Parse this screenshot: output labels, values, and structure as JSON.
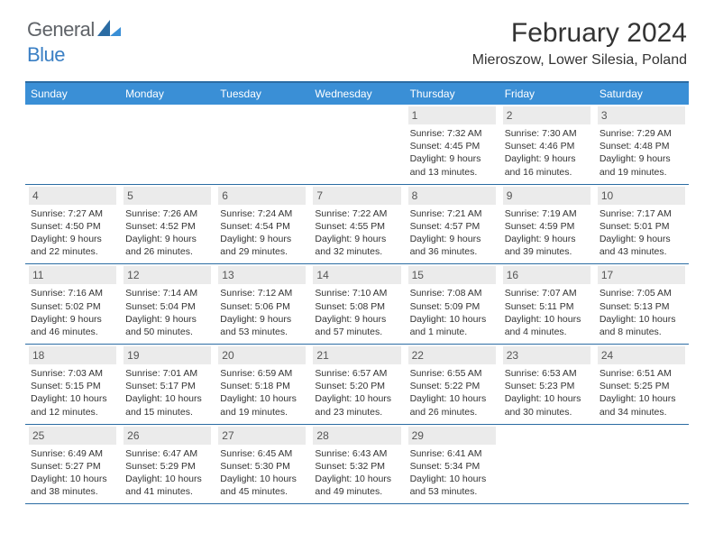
{
  "header": {
    "logo_general": "General",
    "logo_blue": "Blue",
    "month_title": "February 2024",
    "location": "Mieroszow, Lower Silesia, Poland"
  },
  "calendar": {
    "weekdays": [
      "Sunday",
      "Monday",
      "Tuesday",
      "Wednesday",
      "Thursday",
      "Friday",
      "Saturday"
    ],
    "header_bg": "#3a8fd6",
    "border_color": "#2b6ca3",
    "daynum_bg": "#ebebeb",
    "weeks": [
      [
        null,
        null,
        null,
        null,
        {
          "n": "1",
          "sr": "Sunrise: 7:32 AM",
          "ss": "Sunset: 4:45 PM",
          "dl": "Daylight: 9 hours and 13 minutes."
        },
        {
          "n": "2",
          "sr": "Sunrise: 7:30 AM",
          "ss": "Sunset: 4:46 PM",
          "dl": "Daylight: 9 hours and 16 minutes."
        },
        {
          "n": "3",
          "sr": "Sunrise: 7:29 AM",
          "ss": "Sunset: 4:48 PM",
          "dl": "Daylight: 9 hours and 19 minutes."
        }
      ],
      [
        {
          "n": "4",
          "sr": "Sunrise: 7:27 AM",
          "ss": "Sunset: 4:50 PM",
          "dl": "Daylight: 9 hours and 22 minutes."
        },
        {
          "n": "5",
          "sr": "Sunrise: 7:26 AM",
          "ss": "Sunset: 4:52 PM",
          "dl": "Daylight: 9 hours and 26 minutes."
        },
        {
          "n": "6",
          "sr": "Sunrise: 7:24 AM",
          "ss": "Sunset: 4:54 PM",
          "dl": "Daylight: 9 hours and 29 minutes."
        },
        {
          "n": "7",
          "sr": "Sunrise: 7:22 AM",
          "ss": "Sunset: 4:55 PM",
          "dl": "Daylight: 9 hours and 32 minutes."
        },
        {
          "n": "8",
          "sr": "Sunrise: 7:21 AM",
          "ss": "Sunset: 4:57 PM",
          "dl": "Daylight: 9 hours and 36 minutes."
        },
        {
          "n": "9",
          "sr": "Sunrise: 7:19 AM",
          "ss": "Sunset: 4:59 PM",
          "dl": "Daylight: 9 hours and 39 minutes."
        },
        {
          "n": "10",
          "sr": "Sunrise: 7:17 AM",
          "ss": "Sunset: 5:01 PM",
          "dl": "Daylight: 9 hours and 43 minutes."
        }
      ],
      [
        {
          "n": "11",
          "sr": "Sunrise: 7:16 AM",
          "ss": "Sunset: 5:02 PM",
          "dl": "Daylight: 9 hours and 46 minutes."
        },
        {
          "n": "12",
          "sr": "Sunrise: 7:14 AM",
          "ss": "Sunset: 5:04 PM",
          "dl": "Daylight: 9 hours and 50 minutes."
        },
        {
          "n": "13",
          "sr": "Sunrise: 7:12 AM",
          "ss": "Sunset: 5:06 PM",
          "dl": "Daylight: 9 hours and 53 minutes."
        },
        {
          "n": "14",
          "sr": "Sunrise: 7:10 AM",
          "ss": "Sunset: 5:08 PM",
          "dl": "Daylight: 9 hours and 57 minutes."
        },
        {
          "n": "15",
          "sr": "Sunrise: 7:08 AM",
          "ss": "Sunset: 5:09 PM",
          "dl": "Daylight: 10 hours and 1 minute."
        },
        {
          "n": "16",
          "sr": "Sunrise: 7:07 AM",
          "ss": "Sunset: 5:11 PM",
          "dl": "Daylight: 10 hours and 4 minutes."
        },
        {
          "n": "17",
          "sr": "Sunrise: 7:05 AM",
          "ss": "Sunset: 5:13 PM",
          "dl": "Daylight: 10 hours and 8 minutes."
        }
      ],
      [
        {
          "n": "18",
          "sr": "Sunrise: 7:03 AM",
          "ss": "Sunset: 5:15 PM",
          "dl": "Daylight: 10 hours and 12 minutes."
        },
        {
          "n": "19",
          "sr": "Sunrise: 7:01 AM",
          "ss": "Sunset: 5:17 PM",
          "dl": "Daylight: 10 hours and 15 minutes."
        },
        {
          "n": "20",
          "sr": "Sunrise: 6:59 AM",
          "ss": "Sunset: 5:18 PM",
          "dl": "Daylight: 10 hours and 19 minutes."
        },
        {
          "n": "21",
          "sr": "Sunrise: 6:57 AM",
          "ss": "Sunset: 5:20 PM",
          "dl": "Daylight: 10 hours and 23 minutes."
        },
        {
          "n": "22",
          "sr": "Sunrise: 6:55 AM",
          "ss": "Sunset: 5:22 PM",
          "dl": "Daylight: 10 hours and 26 minutes."
        },
        {
          "n": "23",
          "sr": "Sunrise: 6:53 AM",
          "ss": "Sunset: 5:23 PM",
          "dl": "Daylight: 10 hours and 30 minutes."
        },
        {
          "n": "24",
          "sr": "Sunrise: 6:51 AM",
          "ss": "Sunset: 5:25 PM",
          "dl": "Daylight: 10 hours and 34 minutes."
        }
      ],
      [
        {
          "n": "25",
          "sr": "Sunrise: 6:49 AM",
          "ss": "Sunset: 5:27 PM",
          "dl": "Daylight: 10 hours and 38 minutes."
        },
        {
          "n": "26",
          "sr": "Sunrise: 6:47 AM",
          "ss": "Sunset: 5:29 PM",
          "dl": "Daylight: 10 hours and 41 minutes."
        },
        {
          "n": "27",
          "sr": "Sunrise: 6:45 AM",
          "ss": "Sunset: 5:30 PM",
          "dl": "Daylight: 10 hours and 45 minutes."
        },
        {
          "n": "28",
          "sr": "Sunrise: 6:43 AM",
          "ss": "Sunset: 5:32 PM",
          "dl": "Daylight: 10 hours and 49 minutes."
        },
        {
          "n": "29",
          "sr": "Sunrise: 6:41 AM",
          "ss": "Sunset: 5:34 PM",
          "dl": "Daylight: 10 hours and 53 minutes."
        },
        null,
        null
      ]
    ]
  }
}
